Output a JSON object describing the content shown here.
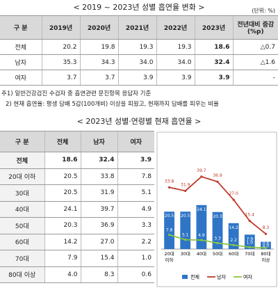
{
  "header": {
    "title": "< 2019 ~ 2023년 성별 흡연율 변화 >",
    "unit": "(단위: %)"
  },
  "table1": {
    "headers": [
      "구 분",
      "2019년",
      "2020년",
      "2021년",
      "2022년",
      "2023년",
      "전년대비 증감(%p)"
    ],
    "rows": [
      [
        "전체",
        "20.2",
        "19.8",
        "19.3",
        "19.3",
        "18.6",
        "△0.7"
      ],
      [
        "남자",
        "35.3",
        "34.3",
        "34.0",
        "34.0",
        "32.4",
        "△1.6"
      ],
      [
        "여자",
        "3.7",
        "3.7",
        "3.9",
        "3.9",
        "3.9",
        "-"
      ]
    ]
  },
  "notes": [
    "주1) 일반건강검진 수검자 중 흡연관련 문진항목 응답자 기준",
    "2) 현재 흡연율: 평생 담배 5갑(100개비) 이상을 피웠고, 현재까지 담배를 피우는 비율"
  ],
  "title2": "< 2023년 성별·연령별 현재 흡연율 >",
  "table2": {
    "headers": [
      "구 분",
      "전체",
      "남자",
      "여자"
    ],
    "rows": [
      [
        "전체",
        "18.6",
        "32.4",
        "3.9"
      ],
      [
        "20대 이하",
        "20.5",
        "33.8",
        "7.8"
      ],
      [
        "30대",
        "20.5",
        "31.9",
        "5.1"
      ],
      [
        "40대",
        "24.1",
        "39.7",
        "4.9"
      ],
      [
        "50대",
        "20.3",
        "36.9",
        "3.3"
      ],
      [
        "60대",
        "14.2",
        "27.0",
        "2.2"
      ],
      [
        "70대",
        "7.9",
        "15.4",
        "1.0"
      ],
      [
        "80대 이상",
        "4.0",
        "8.3",
        "0.6"
      ]
    ]
  },
  "chart_data": {
    "type": "bar-line",
    "categories": [
      [
        "20대",
        "이하"
      ],
      [
        "30대",
        null
      ],
      [
        "40대",
        null
      ],
      [
        "50대",
        null
      ],
      [
        "60대",
        null
      ],
      [
        "70대",
        null
      ],
      [
        "80대",
        "이상"
      ]
    ],
    "ylim": [
      0,
      45
    ],
    "series": [
      {
        "name": "전체",
        "type": "bar",
        "color": "#2e75c6",
        "values": [
          20.5,
          20.5,
          24.1,
          20.3,
          14.2,
          7.9,
          4.0
        ],
        "value_labels": [
          "20.5",
          "20.5",
          "24.1",
          "20.3",
          "14.2",
          "7.9",
          "4.0"
        ]
      },
      {
        "name": "남자",
        "type": "line",
        "color": "#c0392b",
        "values": [
          33.8,
          31.9,
          39.7,
          36.9,
          27.0,
          15.4,
          8.3
        ],
        "value_labels": [
          "33.8",
          "31.9",
          "39.7",
          "36.9",
          "27.0",
          "15.4",
          "8.3"
        ]
      },
      {
        "name": "여자",
        "type": "line",
        "color": "#8cc63f",
        "values": [
          7.8,
          5.1,
          4.9,
          3.3,
          2.2,
          1.0,
          0.6
        ],
        "value_labels": [
          "7.8",
          "5.1",
          "4.9",
          "3.3",
          "2.2",
          "1.0",
          "0.6"
        ]
      }
    ]
  }
}
